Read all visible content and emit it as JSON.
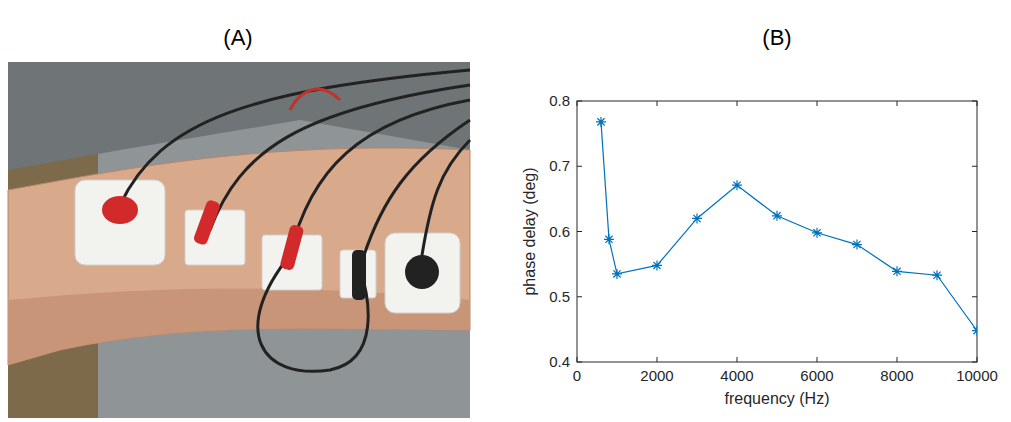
{
  "panel_a": {
    "label": "(A)"
  },
  "chart_data": {
    "type": "line",
    "title": "(B)",
    "x_label": "frequency (Hz)",
    "y_label": "phase delay (deg)",
    "x": [
      600,
      800,
      1000,
      2000,
      3000,
      4000,
      5000,
      6000,
      7000,
      8000,
      9000,
      10000
    ],
    "values": [
      0.768,
      0.588,
      0.535,
      0.548,
      0.62,
      0.671,
      0.624,
      0.598,
      0.58,
      0.539,
      0.533,
      0.448
    ],
    "color": "#0072bd",
    "marker": "asterisk",
    "line_style": "solid",
    "xlim": [
      0,
      10000
    ],
    "ylim": [
      0.4,
      0.8
    ],
    "xticks": [
      0,
      2000,
      4000,
      6000,
      8000,
      10000
    ],
    "yticks": [
      0.4,
      0.5,
      0.6,
      0.7,
      0.8
    ],
    "grid": false
  }
}
